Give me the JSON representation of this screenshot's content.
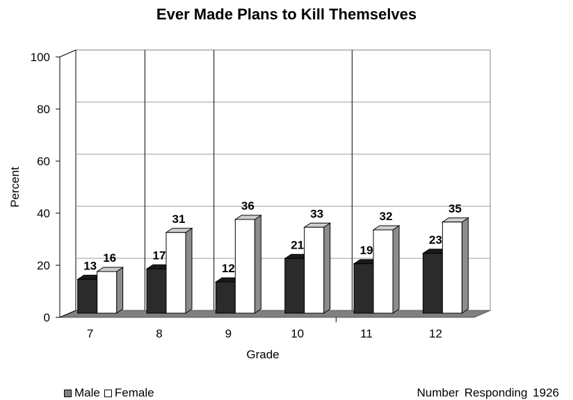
{
  "chart_data": {
    "type": "bar",
    "title": "Ever Made Plans to Kill Themselves",
    "xlabel": "Grade",
    "ylabel": "Percent",
    "categories": [
      "7",
      "8",
      "9",
      "10",
      "11",
      "12"
    ],
    "series": [
      {
        "name": "Male",
        "values": [
          13,
          17,
          12,
          21,
          19,
          23
        ],
        "color": "#2b2b2b"
      },
      {
        "name": "Female",
        "values": [
          16,
          31,
          36,
          33,
          32,
          35
        ],
        "color": "#ffffff"
      }
    ],
    "ylim": [
      0,
      100
    ],
    "yticks": [
      0,
      20,
      40,
      60,
      80,
      100
    ],
    "grid": true,
    "legend": "bottom-left",
    "floor_color": "#808080"
  },
  "footnote": "Number Responding 1926"
}
